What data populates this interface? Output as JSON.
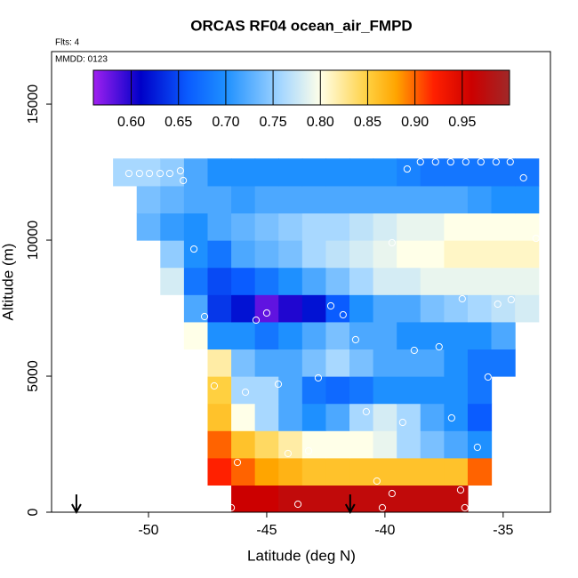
{
  "chart_data": {
    "type": "heatmap",
    "title": "ORCAS RF04 ocean_air_FMPD",
    "subtitle": "Flts: 4",
    "annotation": "MMDD: 0123",
    "xlabel": "Latitude (deg N)",
    "ylabel": "Altitude (m)",
    "xlim": [
      -54.1,
      -33.0
    ],
    "ylim": [
      0,
      16930
    ],
    "xticks": [
      -50,
      -45,
      -40,
      -35
    ],
    "yticks": [
      0,
      5000,
      10000,
      15000
    ],
    "x": [
      -51,
      -50,
      -49,
      -48,
      -47,
      -46,
      -45,
      -44,
      -43,
      -42,
      -41,
      -40,
      -39,
      -38,
      -37,
      -36,
      -35,
      -34
    ],
    "y": [
      500,
      1500,
      2500,
      3500,
      4500,
      5500,
      6500,
      7500,
      8500,
      9500,
      10500,
      11500,
      12500
    ],
    "z": [
      [
        null,
        null,
        null,
        null,
        null,
        0.96,
        0.96,
        0.97,
        0.97,
        0.97,
        0.97,
        0.97,
        0.97,
        0.97,
        0.97,
        null,
        null,
        null
      ],
      [
        null,
        null,
        null,
        null,
        0.92,
        0.9,
        0.88,
        0.87,
        0.86,
        0.86,
        0.86,
        0.86,
        0.86,
        0.86,
        0.86,
        0.9,
        null,
        null
      ],
      [
        null,
        null,
        null,
        null,
        0.9,
        0.86,
        0.84,
        0.82,
        0.8,
        0.8,
        0.8,
        0.79,
        0.76,
        0.74,
        0.72,
        0.7,
        null,
        null
      ],
      [
        null,
        null,
        null,
        null,
        0.86,
        0.8,
        0.76,
        0.72,
        0.7,
        0.72,
        0.76,
        0.78,
        0.76,
        0.72,
        0.7,
        0.66,
        null,
        null
      ],
      [
        null,
        null,
        null,
        null,
        0.85,
        0.76,
        0.76,
        0.72,
        0.68,
        0.67,
        0.68,
        0.7,
        0.7,
        0.7,
        0.7,
        0.68,
        null,
        null
      ],
      [
        null,
        null,
        null,
        null,
        0.82,
        0.74,
        0.72,
        0.72,
        0.74,
        0.76,
        0.74,
        0.72,
        0.72,
        0.72,
        0.7,
        0.68,
        0.68,
        null
      ],
      [
        null,
        null,
        null,
        0.8,
        0.7,
        0.7,
        0.68,
        0.7,
        0.72,
        0.74,
        0.72,
        0.72,
        0.7,
        0.7,
        0.7,
        0.7,
        0.72,
        null
      ],
      [
        null,
        null,
        null,
        0.72,
        0.64,
        0.62,
        0.58,
        0.6,
        0.62,
        0.66,
        0.7,
        0.72,
        0.72,
        0.74,
        0.75,
        0.76,
        0.77,
        0.78
      ],
      [
        null,
        null,
        0.78,
        0.68,
        0.65,
        0.66,
        0.68,
        0.7,
        0.72,
        0.74,
        0.76,
        0.78,
        0.78,
        0.79,
        0.79,
        0.79,
        0.79,
        0.79
      ],
      [
        null,
        null,
        0.75,
        0.7,
        0.68,
        0.72,
        0.73,
        0.74,
        0.76,
        0.77,
        0.78,
        0.79,
        0.8,
        0.8,
        0.81,
        0.81,
        0.81,
        0.81
      ],
      [
        null,
        0.73,
        0.71,
        0.7,
        0.72,
        0.73,
        0.74,
        0.75,
        0.76,
        0.76,
        0.77,
        0.78,
        0.79,
        0.79,
        0.8,
        0.8,
        0.8,
        0.8
      ],
      [
        null,
        0.74,
        0.73,
        0.72,
        0.72,
        0.71,
        0.72,
        0.72,
        0.72,
        0.72,
        0.72,
        0.72,
        0.72,
        0.72,
        0.72,
        0.71,
        0.7,
        0.7
      ],
      [
        0.76,
        0.76,
        0.75,
        0.72,
        0.7,
        0.7,
        0.7,
        0.7,
        0.7,
        0.7,
        0.7,
        0.7,
        0.69,
        0.68,
        0.68,
        0.68,
        0.68,
        0.68
      ]
    ],
    "colorbar_lim": [
      0.56,
      1.0
    ],
    "colorbar_ticks": [
      {
        "value": 0.6,
        "label": "0.60"
      },
      0.65,
      {
        "value": 0.7,
        "label": "0.70"
      },
      0.75,
      {
        "value": 0.8,
        "label": "0.80"
      },
      0.85,
      {
        "value": 0.9,
        "label": "0.90"
      },
      0.95
    ],
    "colorscale": [
      [
        0.56,
        "#a020f0"
      ],
      [
        0.61,
        "#0000c8"
      ],
      [
        0.66,
        "#0a5cff"
      ],
      [
        0.7,
        "#1e90ff"
      ],
      [
        0.76,
        "#a8d8ff"
      ],
      [
        0.8,
        "#ffffe8"
      ],
      [
        0.85,
        "#ffd040"
      ],
      [
        0.88,
        "#ffa500"
      ],
      [
        0.92,
        "#ff2000"
      ],
      [
        0.96,
        "#cc0000"
      ],
      [
        1.0,
        "#a02828"
      ]
    ],
    "points": {
      "color": "#ffffff",
      "x": [
        -50.83,
        -50.38,
        -49.96,
        -49.51,
        -49.1,
        -48.65,
        -48.53,
        -48.08,
        -47.63,
        -47.22,
        -45.9,
        -45.45,
        -45.0,
        -44.51,
        -42.82,
        -42.29,
        -41.77,
        -41.24,
        -39.7,
        -38.76,
        -39.06,
        -38.5,
        -37.86,
        -37.22,
        -36.58,
        -35.94,
        -35.3,
        -34.7,
        -34.14,
        -37.71,
        -36.73,
        -35.23,
        -34.66,
        -35.64,
        -37.18,
        -39.25,
        -40.79,
        -36.09,
        -43.23,
        -44.1,
        -46.24,
        -40.34,
        -39.7,
        -36.8,
        -46.5,
        -43.68,
        -40.11,
        -36.62,
        -33.61
      ],
      "y": [
        12451,
        12451,
        12451,
        12451,
        12451,
        12549,
        12190,
        9673,
        7190,
        4641,
        4412,
        7059,
        7320,
        4706,
        4935,
        7582,
        7255,
        6340,
        9902,
        5948,
        12614,
        12876,
        12876,
        12876,
        12876,
        12876,
        12876,
        12876,
        12288,
        6078,
        7843,
        7647,
        7810,
        4967,
        3464,
        3301,
        3693,
        2386,
        2255,
        2157,
        1830,
        1144,
        686,
        817,
        163,
        294,
        163,
        163,
        10065
      ]
    },
    "arrows_x": [
      -53.05,
      -41.47
    ]
  }
}
